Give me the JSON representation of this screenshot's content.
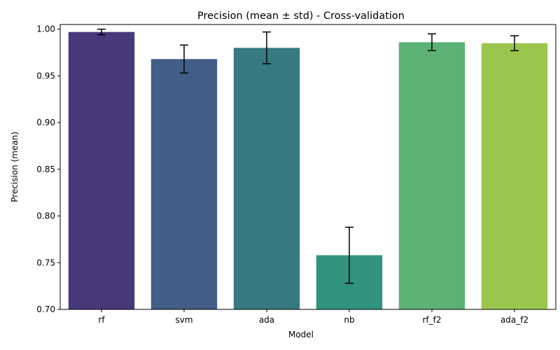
{
  "chart_data": {
    "type": "bar",
    "title": "Precision (mean ± std) - Cross-validation",
    "xlabel": "Model",
    "ylabel": "Precision (mean)",
    "categories": [
      "rf",
      "svm",
      "ada",
      "nb",
      "rf_f2",
      "ada_f2"
    ],
    "values": [
      0.997,
      0.968,
      0.98,
      0.758,
      0.986,
      0.985
    ],
    "errors": [
      0.003,
      0.015,
      0.017,
      0.03,
      0.009,
      0.008
    ],
    "colors": [
      "#48397a",
      "#405e86",
      "#367a80",
      "#31927e",
      "#5cb275",
      "#9bc64e"
    ],
    "ylim": [
      0.7,
      1.005
    ],
    "yticks": [
      "0.70",
      "0.75",
      "0.80",
      "0.85",
      "0.90",
      "0.95",
      "1.00"
    ],
    "grid": false,
    "legend": "none"
  }
}
